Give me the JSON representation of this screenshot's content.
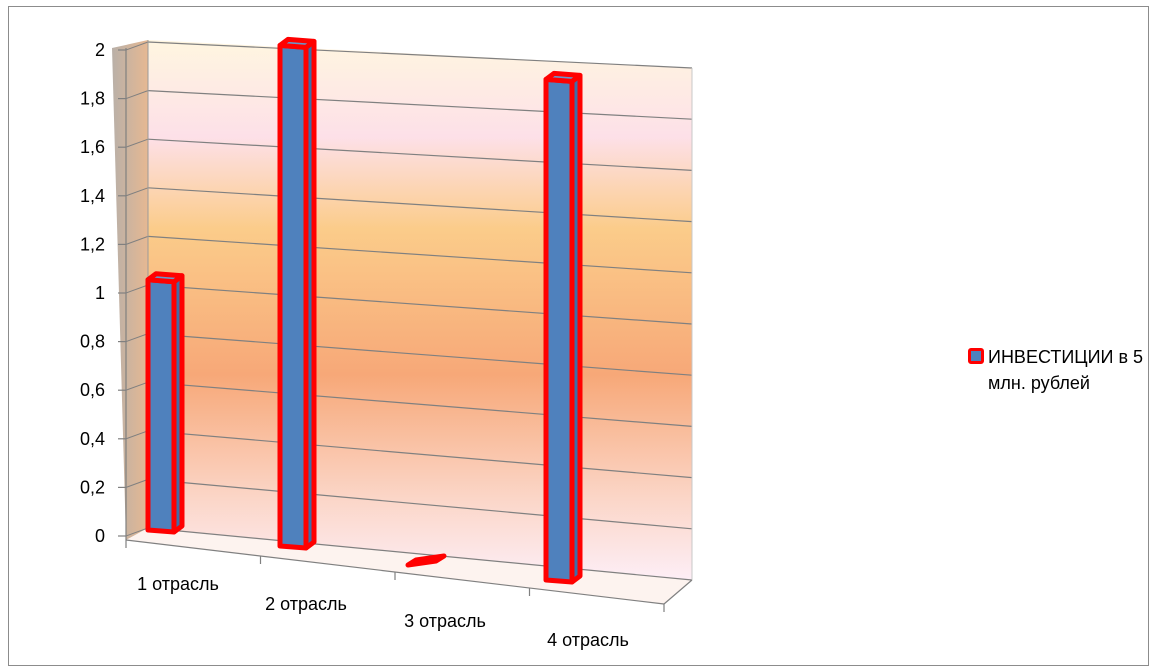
{
  "chart_data": {
    "type": "bar",
    "categories": [
      "1 отрасль",
      "2 отрасль",
      "3 отрасль",
      "4 отрасль"
    ],
    "series": [
      {
        "name": "ИНВЕСТИЦИИ в 5 млн. рублей",
        "values": [
          1,
          2,
          0,
          2
        ]
      }
    ],
    "y_ticks": [
      "0",
      "0,2",
      "0,4",
      "0,6",
      "0,8",
      "1",
      "1,2",
      "1,4",
      "1,6",
      "1,8",
      "2"
    ],
    "ylim": [
      0,
      2
    ],
    "grid": true,
    "legend_position": "right",
    "style": "3d",
    "colors": {
      "bar_fill": "#4f81bd",
      "bar_outline": "#ff0000",
      "grid": "#808080"
    }
  }
}
